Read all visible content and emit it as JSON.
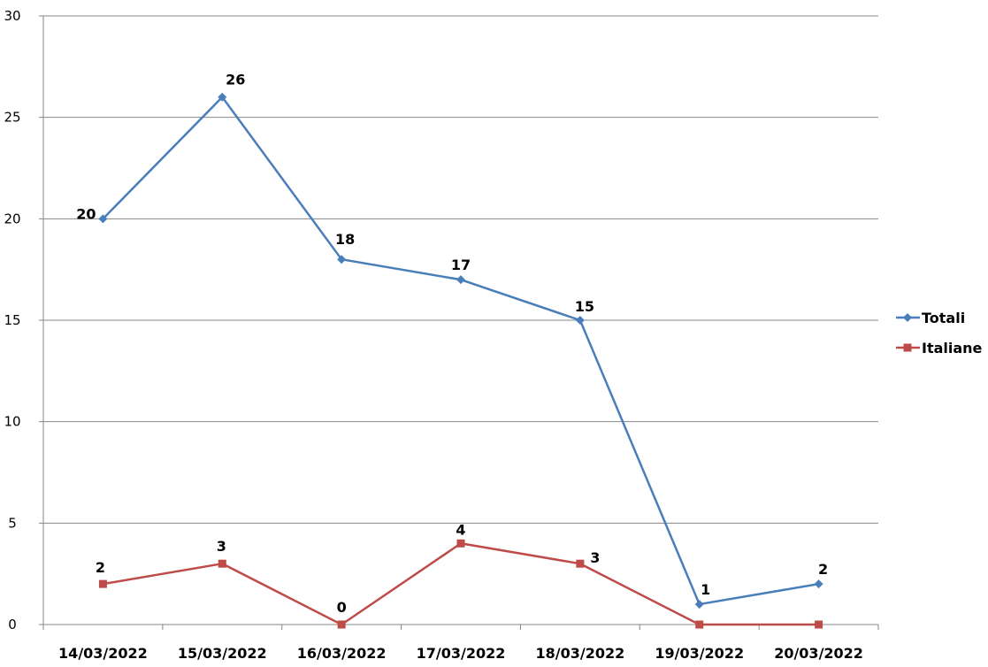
{
  "chart_data": {
    "type": "line",
    "categories": [
      "14/03/2022",
      "15/03/2022",
      "16/03/2022",
      "17/03/2022",
      "18/03/2022",
      "19/03/2022",
      "20/03/2022"
    ],
    "series": [
      {
        "name": "Totali",
        "values": [
          20,
          26,
          18,
          17,
          15,
          1,
          2
        ],
        "color": "#4a7ebb",
        "marker": "diamond",
        "labels": [
          "20",
          "26",
          "18",
          "17",
          "15",
          "1",
          "2"
        ]
      },
      {
        "name": "Italiane",
        "values": [
          2,
          3,
          0,
          4,
          3,
          0,
          0
        ],
        "color": "#be4b48",
        "marker": "square",
        "labels": [
          "2",
          "3",
          "0",
          "4",
          "3",
          "",
          ""
        ]
      }
    ],
    "ylim": [
      0,
      30
    ],
    "yticks": [
      "0",
      "5",
      "10",
      "15",
      "20",
      "25",
      "30"
    ],
    "grid": true,
    "legend": "right"
  }
}
